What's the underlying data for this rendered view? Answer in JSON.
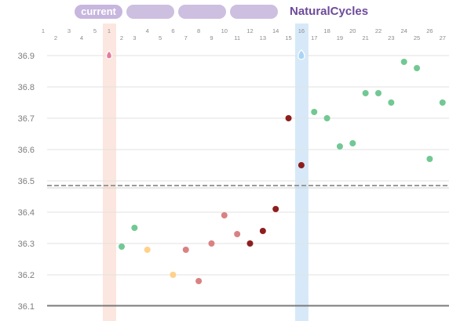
{
  "header": {
    "tabs": [
      {
        "label": "current"
      },
      {
        "label": ""
      },
      {
        "label": ""
      },
      {
        "label": ""
      }
    ],
    "brand": "NaturalCycles"
  },
  "colors": {
    "brand_purple": "#6e4a9a",
    "tab_bg": "#cdbfe0",
    "period_band": "#fbe7df",
    "ovulation_band": "#d7e9f8",
    "green_point": "#72c893",
    "red_point": "#d98282",
    "dark_red_point": "#8e1e1e",
    "yellow_point": "#ffd18a",
    "cover_line": "#9a9a9a"
  },
  "chart_data": {
    "type": "scatter",
    "ylim": [
      36.05,
      36.97
    ],
    "y_ticks": [
      36.1,
      36.2,
      36.3,
      36.4,
      36.5,
      36.6,
      36.7,
      36.8,
      36.9
    ],
    "y_tick_labels": [
      "36.1",
      "36.2",
      "36.3",
      "36.4",
      "36.5",
      "36.6",
      "36.7",
      "36.8",
      "36.9"
    ],
    "cover_line": 36.485,
    "x_top_labels": [
      "1",
      "3",
      "5",
      "1",
      "4",
      "6",
      "8",
      "10",
      "12",
      "14",
      "16",
      "18",
      "20",
      "22",
      "24",
      "26"
    ],
    "x_bottom_labels": [
      "2",
      "4",
      "2",
      "3",
      "5",
      "7",
      "9",
      "11",
      "13",
      "15",
      "17",
      "19",
      "21",
      "23",
      "25",
      "27"
    ],
    "highlight_bands": [
      {
        "kind": "period",
        "label": "1"
      },
      {
        "kind": "ovulation",
        "label": "16"
      }
    ],
    "markers": [
      {
        "kind": "period-drop",
        "day": "1",
        "y": 36.9
      },
      {
        "kind": "ovulation-drop",
        "day": "16",
        "y": 36.9
      }
    ],
    "points": [
      {
        "day": 2,
        "y": 36.29,
        "color": "green"
      },
      {
        "day": 3,
        "y": 36.35,
        "color": "green"
      },
      {
        "day": 4,
        "y": 36.28,
        "color": "yellow"
      },
      {
        "day": 6,
        "y": 36.2,
        "color": "yellow"
      },
      {
        "day": 7,
        "y": 36.28,
        "color": "red"
      },
      {
        "day": 8,
        "y": 36.18,
        "color": "red"
      },
      {
        "day": 9,
        "y": 36.3,
        "color": "red"
      },
      {
        "day": 10,
        "y": 36.39,
        "color": "red"
      },
      {
        "day": 11,
        "y": 36.33,
        "color": "red"
      },
      {
        "day": 12,
        "y": 36.3,
        "color": "dark-red"
      },
      {
        "day": 13,
        "y": 36.34,
        "color": "dark-red"
      },
      {
        "day": 14,
        "y": 36.41,
        "color": "dark-red"
      },
      {
        "day": 15,
        "y": 36.7,
        "color": "dark-red"
      },
      {
        "day": 16,
        "y": 36.55,
        "color": "dark-red"
      },
      {
        "day": 17,
        "y": 36.72,
        "color": "green"
      },
      {
        "day": 18,
        "y": 36.7,
        "color": "green"
      },
      {
        "day": 19,
        "y": 36.61,
        "color": "green"
      },
      {
        "day": 20,
        "y": 36.62,
        "color": "green"
      },
      {
        "day": 21,
        "y": 36.78,
        "color": "green"
      },
      {
        "day": 22,
        "y": 36.78,
        "color": "green"
      },
      {
        "day": 23,
        "y": 36.75,
        "color": "green"
      },
      {
        "day": 24,
        "y": 36.88,
        "color": "green"
      },
      {
        "day": 25,
        "y": 36.86,
        "color": "green"
      },
      {
        "day": 26,
        "y": 36.57,
        "color": "green"
      },
      {
        "day": 27,
        "y": 36.75,
        "color": "green"
      }
    ]
  }
}
